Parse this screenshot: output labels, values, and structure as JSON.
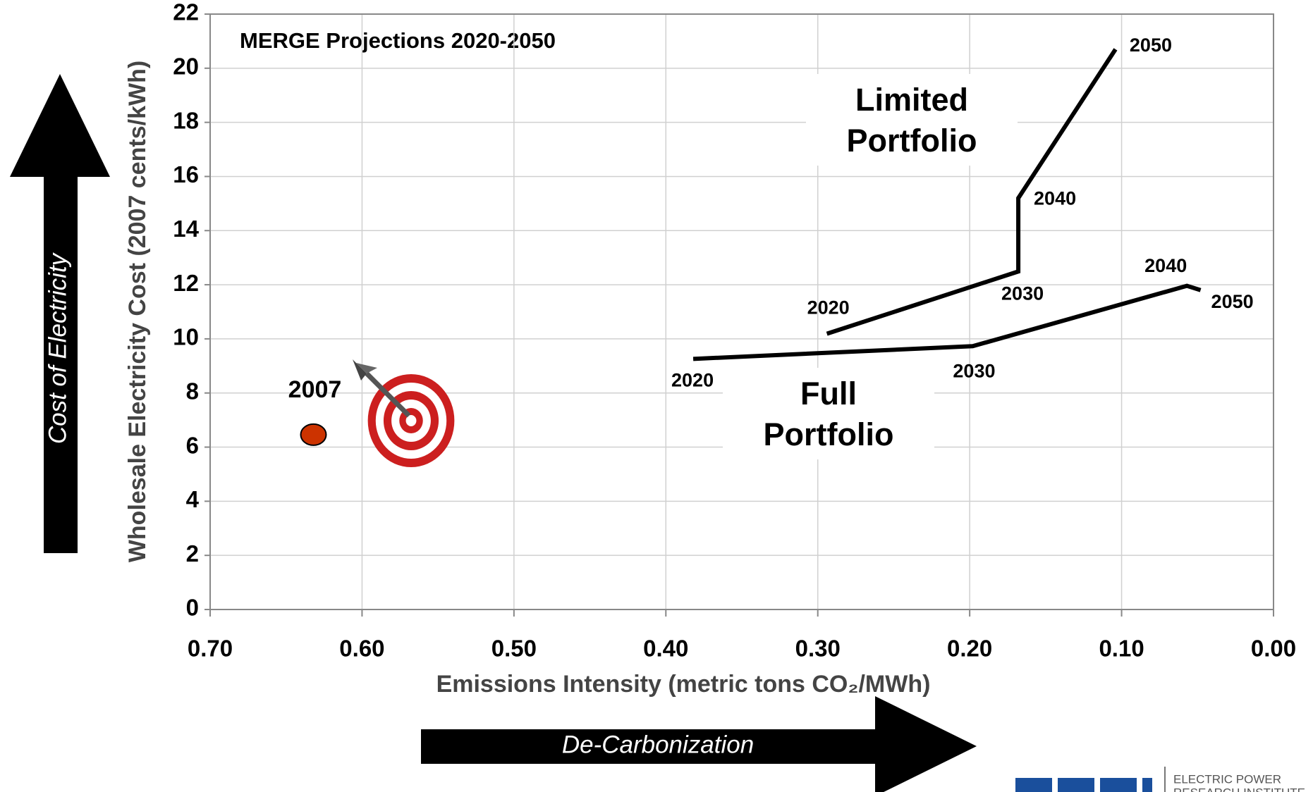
{
  "chart_data": {
    "type": "line",
    "title": "MERGE Projections 2020-2050",
    "x_label": "Emissions Intensity (metric tons CO₂/MWh)",
    "y_label": "Wholesale Electricity Cost (2007 cents/kWh)",
    "xlim": [
      0.7,
      0.0
    ],
    "ylim": [
      0,
      22
    ],
    "xticks": [
      {
        "value": 0.7,
        "label": "0.70"
      },
      {
        "value": 0.6,
        "label": "0.60"
      },
      {
        "value": 0.5,
        "label": "0.50"
      },
      {
        "value": 0.4,
        "label": "0.40"
      },
      {
        "value": 0.3,
        "label": "0.30"
      },
      {
        "value": 0.2,
        "label": "0.20"
      },
      {
        "value": 0.1,
        "label": "0.10"
      },
      {
        "value": 0.0,
        "label": "0.00"
      }
    ],
    "yticks": [
      0,
      2,
      4,
      6,
      8,
      10,
      12,
      14,
      16,
      18,
      20,
      22
    ],
    "grid": true,
    "series": [
      {
        "name": "Limited Portfolio",
        "color": "#000000",
        "x": [
          0.294,
          0.168,
          0.168,
          0.104
        ],
        "values": [
          10.19,
          12.49,
          15.2,
          20.7
        ],
        "point_labels": [
          "2020",
          "2030",
          "2040",
          "2050"
        ]
      },
      {
        "name": "Full Portfolio",
        "color": "#000000",
        "x": [
          0.382,
          0.198,
          0.057,
          0.048
        ],
        "values": [
          9.26,
          9.73,
          11.96,
          11.8
        ],
        "point_labels": [
          "2020",
          "2030",
          "2040",
          "2050"
        ]
      },
      {
        "name": "2007",
        "color": "#cc3300",
        "marker": "circle",
        "x": [
          0.632
        ],
        "values": [
          6.46
        ]
      }
    ],
    "arrows": {
      "vertical": "Cost of Electricity",
      "horizontal": "De-Carbonization"
    },
    "logo": {
      "line1": "ELECTRIC POWER",
      "line2": "RESEARCH INSTITUTE"
    }
  }
}
